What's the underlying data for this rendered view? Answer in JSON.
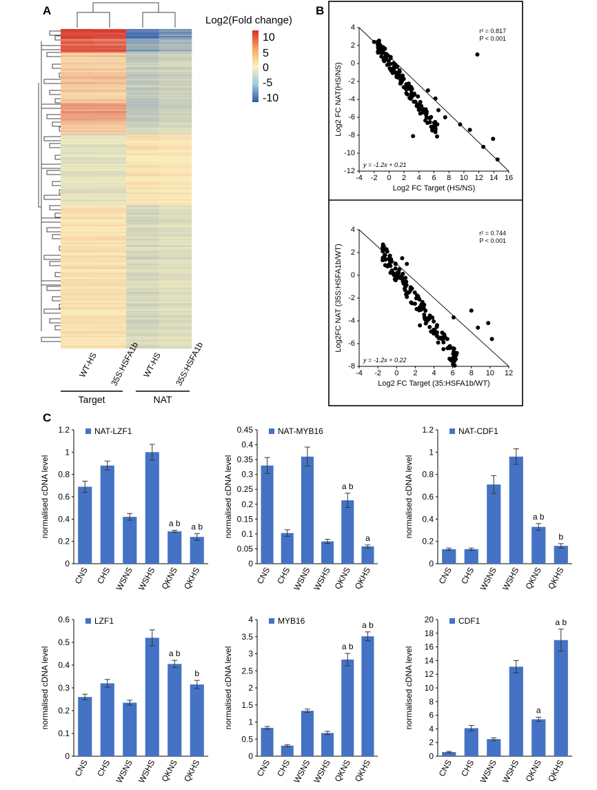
{
  "panels": {
    "a": "A",
    "b": "B",
    "c": "C"
  },
  "heatmap": {
    "legend_title": "Log2(Fold change)",
    "legend_ticks": [
      "10",
      "5",
      "0",
      "-5",
      "-10"
    ],
    "column_labels": [
      "WT-HS",
      "35S:HSFA1b",
      "WT-HS",
      "35S:HSFA1b"
    ],
    "group_labels": [
      "Target",
      "NAT"
    ],
    "colors": {
      "high": "#d73027",
      "mid": "#fbf3c0",
      "low": "#3b67b0"
    }
  },
  "chart_data": [
    {
      "type": "scatter",
      "xlabel": "Log2 FC Target (HS/NS)",
      "ylabel": "Log2 FC NAT(HS/NS)",
      "xlim": [
        -4,
        16
      ],
      "ylim": [
        -12,
        4
      ],
      "xticks": [
        "-4",
        "-2",
        "0",
        "2",
        "4",
        "6",
        "8",
        "10",
        "12",
        "14",
        "16"
      ],
      "yticks": [
        "4",
        "2",
        "0",
        "-2",
        "-4",
        "-6",
        "-8",
        "-10",
        "-12"
      ],
      "r2": "r² = 0.817",
      "p": "P < 0.001",
      "equation": "y = -1.2x + 0.21",
      "fit": {
        "slope": -1.2,
        "intercept": 0.21
      },
      "outliers": [
        [
          -2,
          2.4
        ],
        [
          -1.5,
          2.1
        ],
        [
          -1,
          1.6
        ],
        [
          11.8,
          1.0
        ],
        [
          3.2,
          -8.1
        ],
        [
          14.5,
          -10.7
        ],
        [
          12.6,
          -9.3
        ],
        [
          13.9,
          -8.4
        ],
        [
          7.5,
          -6.0
        ],
        [
          9.5,
          -6.8
        ],
        [
          6.6,
          -5.2
        ],
        [
          5.2,
          -3.0
        ],
        [
          6.2,
          -3.9
        ],
        [
          10.8,
          -7.4
        ]
      ]
    },
    {
      "type": "scatter",
      "xlabel": "Log2 FC Target (35:HSFA1b/WT)",
      "ylabel": "Log2FC NAT (35S:HSFA1b/WT)",
      "xlim": [
        -4,
        12
      ],
      "ylim": [
        -8,
        4
      ],
      "xticks": [
        "-4",
        "-2",
        "0",
        "2",
        "4",
        "6",
        "8",
        "10",
        "12"
      ],
      "yticks": [
        "4",
        "2",
        "0",
        "-2",
        "-4",
        "-6",
        "-8"
      ],
      "r2": "r² = 0.744",
      "p": "P < 0.001",
      "equation": "y = -1.2x + 0.22",
      "fit": {
        "slope": -1.2,
        "intercept": 0.22
      },
      "outliers": [
        [
          0.6,
          1.5
        ],
        [
          1.1,
          1.0
        ],
        [
          0.2,
          0.3
        ],
        [
          10.2,
          -5.6
        ],
        [
          8.7,
          -4.6
        ],
        [
          8.0,
          -3.1
        ],
        [
          6.1,
          -3.7
        ],
        [
          4.3,
          -5.3
        ],
        [
          9.8,
          -4.2
        ],
        [
          2.5,
          -4.4
        ]
      ]
    },
    {
      "type": "bar",
      "legend": "NAT-LZF1",
      "ylabel": "normalised cDNA level",
      "categories": [
        "CNS",
        "CHS",
        "WSNS",
        "WSHS",
        "QKNS",
        "QKHS"
      ],
      "values": [
        0.69,
        0.88,
        0.42,
        1.0,
        0.29,
        0.24
      ],
      "errors": [
        0.05,
        0.04,
        0.03,
        0.07,
        0.01,
        0.03
      ],
      "sig": [
        "",
        "",
        "",
        "",
        "a  b",
        "a  b"
      ],
      "ylim": [
        0,
        1.2
      ],
      "yticks": [
        "0",
        "0.2",
        "0.4",
        "0.6",
        "0.8",
        "1",
        "1.2"
      ]
    },
    {
      "type": "bar",
      "legend": "NAT-MYB16",
      "ylabel": "normalised cDNA level",
      "categories": [
        "CNS",
        "CHS",
        "WSNS",
        "WSHS",
        "QKNS",
        "QKHS"
      ],
      "values": [
        0.33,
        0.103,
        0.36,
        0.075,
        0.213,
        0.058
      ],
      "errors": [
        0.027,
        0.011,
        0.032,
        0.007,
        0.024,
        0.005
      ],
      "sig": [
        "",
        "",
        "",
        "",
        "a  b",
        "a"
      ],
      "ylim": [
        0,
        0.45
      ],
      "yticks": [
        "0",
        "0.05",
        "0.1",
        "0.15",
        "0.2",
        "0.25",
        "0.3",
        "0.35",
        "0.4",
        "0.45"
      ]
    },
    {
      "type": "bar",
      "legend": "NAT-CDF1",
      "ylabel": "normalised cDNA level",
      "categories": [
        "CNS",
        "CHS",
        "WSNS",
        "WSHS",
        "QKNS",
        "QKHS"
      ],
      "values": [
        0.13,
        0.13,
        0.71,
        0.96,
        0.33,
        0.16
      ],
      "errors": [
        0.01,
        0.01,
        0.08,
        0.07,
        0.03,
        0.02
      ],
      "sig": [
        "",
        "",
        "",
        "",
        "a  b",
        "b"
      ],
      "ylim": [
        0,
        1.2
      ],
      "yticks": [
        "0",
        "0.2",
        "0.4",
        "0.6",
        "0.8",
        "1",
        "1.2"
      ]
    },
    {
      "type": "bar",
      "legend": "LZF1",
      "ylabel": "normalised cDNA level",
      "categories": [
        "CNS",
        "CHS",
        "WSNS",
        "WSHS",
        "QKNS",
        "QKHS"
      ],
      "values": [
        0.26,
        0.32,
        0.235,
        0.52,
        0.405,
        0.315
      ],
      "errors": [
        0.012,
        0.017,
        0.011,
        0.035,
        0.016,
        0.018
      ],
      "sig": [
        "",
        "",
        "",
        "",
        "a  b",
        "b"
      ],
      "ylim": [
        0,
        0.6
      ],
      "yticks": [
        "0",
        "0.1",
        "0.2",
        "0.3",
        "0.4",
        "0.5",
        "0.6"
      ]
    },
    {
      "type": "bar",
      "legend": "MYB16",
      "ylabel": "normalised cDNA level",
      "categories": [
        "CNS",
        "CHS",
        "WSNS",
        "WSHS",
        "QKNS",
        "QKHS"
      ],
      "values": [
        0.83,
        0.31,
        1.33,
        0.68,
        2.83,
        3.51
      ],
      "errors": [
        0.04,
        0.03,
        0.05,
        0.05,
        0.18,
        0.13
      ],
      "sig": [
        "",
        "",
        "",
        "",
        "a  b",
        "a  b"
      ],
      "ylim": [
        0,
        4
      ],
      "yticks": [
        "0",
        "0.5",
        "1",
        "1.5",
        "2",
        "2.5",
        "3",
        "3.5",
        "4"
      ]
    },
    {
      "type": "bar",
      "legend": "CDF1",
      "ylabel": "normalised cDNA level",
      "categories": [
        "CNS",
        "CHS",
        "WSNS",
        "WSHS",
        "QKNS",
        "QKHS"
      ],
      "values": [
        0.6,
        4.1,
        2.5,
        13.1,
        5.4,
        17.0
      ],
      "errors": [
        0.1,
        0.4,
        0.2,
        0.9,
        0.3,
        1.6
      ],
      "sig": [
        "",
        "",
        "",
        "",
        "a",
        "a  b"
      ],
      "ylim": [
        0,
        20
      ],
      "yticks": [
        "0",
        "2",
        "4",
        "6",
        "8",
        "10",
        "12",
        "14",
        "16",
        "18",
        "20"
      ]
    }
  ]
}
